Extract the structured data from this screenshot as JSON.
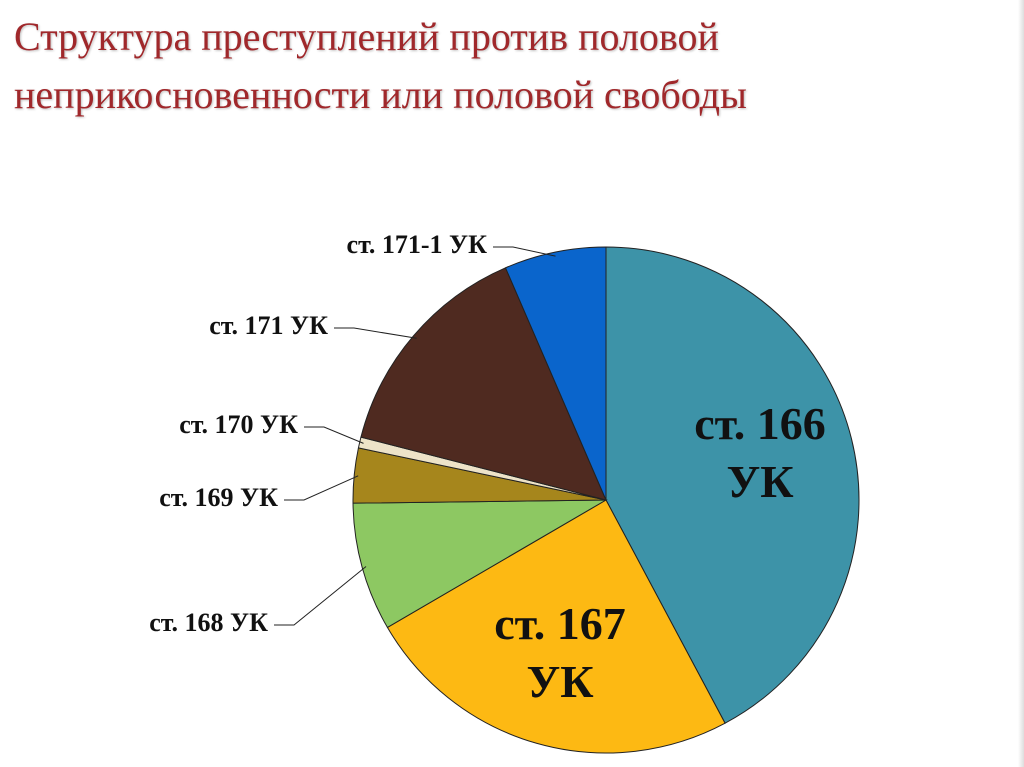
{
  "chart_data": {
    "type": "pie",
    "title": "Структура преступлений против половой неприкосновенности или половой свободы",
    "categories": [
      "ст. 166 УК",
      "ст. 167 УК",
      "ст. 168 УК",
      "ст. 169 УК",
      "ст. 170 УК",
      "ст. 171 УК",
      "ст. 171-1 УК"
    ],
    "values": [
      42.2,
      24.4,
      8.2,
      3.5,
      0.7,
      14.5,
      6.5
    ],
    "colors": [
      "#3d93a8",
      "#fdb913",
      "#8dc862",
      "#a6861c",
      "#ede3c8",
      "#4f2a20",
      "#0a65cc"
    ]
  }
}
